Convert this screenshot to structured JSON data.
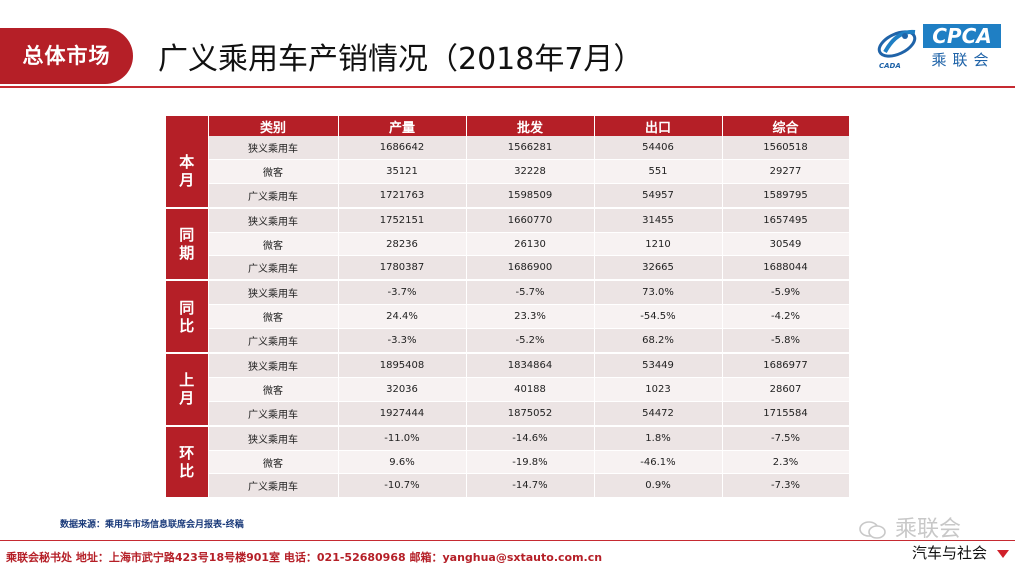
{
  "header": {
    "tab_label": "总体市场",
    "title": "广义乘用车产销情况（2018年7月）",
    "logo_text": "CPCA",
    "logo_cn": "乘联会",
    "logo_sub": "CADA"
  },
  "table": {
    "columns": [
      "类别",
      "产量",
      "批发",
      "出口",
      "综合"
    ],
    "groups": [
      {
        "label": "本月",
        "rows": [
          {
            "category": "狭义乘用车",
            "values": [
              "1686642",
              "1566281",
              "54406",
              "1560518"
            ]
          },
          {
            "category": "微客",
            "values": [
              "35121",
              "32228",
              "551",
              "29277"
            ]
          },
          {
            "category": "广义乘用车",
            "values": [
              "1721763",
              "1598509",
              "54957",
              "1589795"
            ]
          }
        ]
      },
      {
        "label": "同期",
        "rows": [
          {
            "category": "狭义乘用车",
            "values": [
              "1752151",
              "1660770",
              "31455",
              "1657495"
            ]
          },
          {
            "category": "微客",
            "values": [
              "28236",
              "26130",
              "1210",
              "30549"
            ]
          },
          {
            "category": "广义乘用车",
            "values": [
              "1780387",
              "1686900",
              "32665",
              "1688044"
            ]
          }
        ]
      },
      {
        "label": "同比",
        "rows": [
          {
            "category": "狭义乘用车",
            "values": [
              "-3.7%",
              "-5.7%",
              "73.0%",
              "-5.9%"
            ]
          },
          {
            "category": "微客",
            "values": [
              "24.4%",
              "23.3%",
              "-54.5%",
              "-4.2%"
            ]
          },
          {
            "category": "广义乘用车",
            "values": [
              "-3.3%",
              "-5.2%",
              "68.2%",
              "-5.8%"
            ]
          }
        ]
      },
      {
        "label": "上月",
        "rows": [
          {
            "category": "狭义乘用车",
            "values": [
              "1895408",
              "1834864",
              "53449",
              "1686977"
            ]
          },
          {
            "category": "微客",
            "values": [
              "32036",
              "40188",
              "1023",
              "28607"
            ]
          },
          {
            "category": "广义乘用车",
            "values": [
              "1927444",
              "1875052",
              "54472",
              "1715584"
            ]
          }
        ]
      },
      {
        "label": "环比",
        "rows": [
          {
            "category": "狭义乘用车",
            "values": [
              "-11.0%",
              "-14.6%",
              "1.8%",
              "-7.5%"
            ]
          },
          {
            "category": "微客",
            "values": [
              "9.6%",
              "-19.8%",
              "-46.1%",
              "2.3%"
            ]
          },
          {
            "category": "广义乘用车",
            "values": [
              "-10.7%",
              "-14.7%",
              "0.9%",
              "-7.3%"
            ]
          }
        ]
      }
    ]
  },
  "source_note": "数据来源：乘用车市场信息联席会月报表-终稿",
  "footer": "乘联会秘书处   地址：上海市武宁路423号18号楼901室  电话：021-52680968   邮箱：yanghua@sxtauto.com.cn",
  "watermark": {
    "line1": "乘联会",
    "line2": "汽车与社会"
  },
  "colors": {
    "brand_red": "#b51f27",
    "logo_blue": "#1f7fc4"
  }
}
